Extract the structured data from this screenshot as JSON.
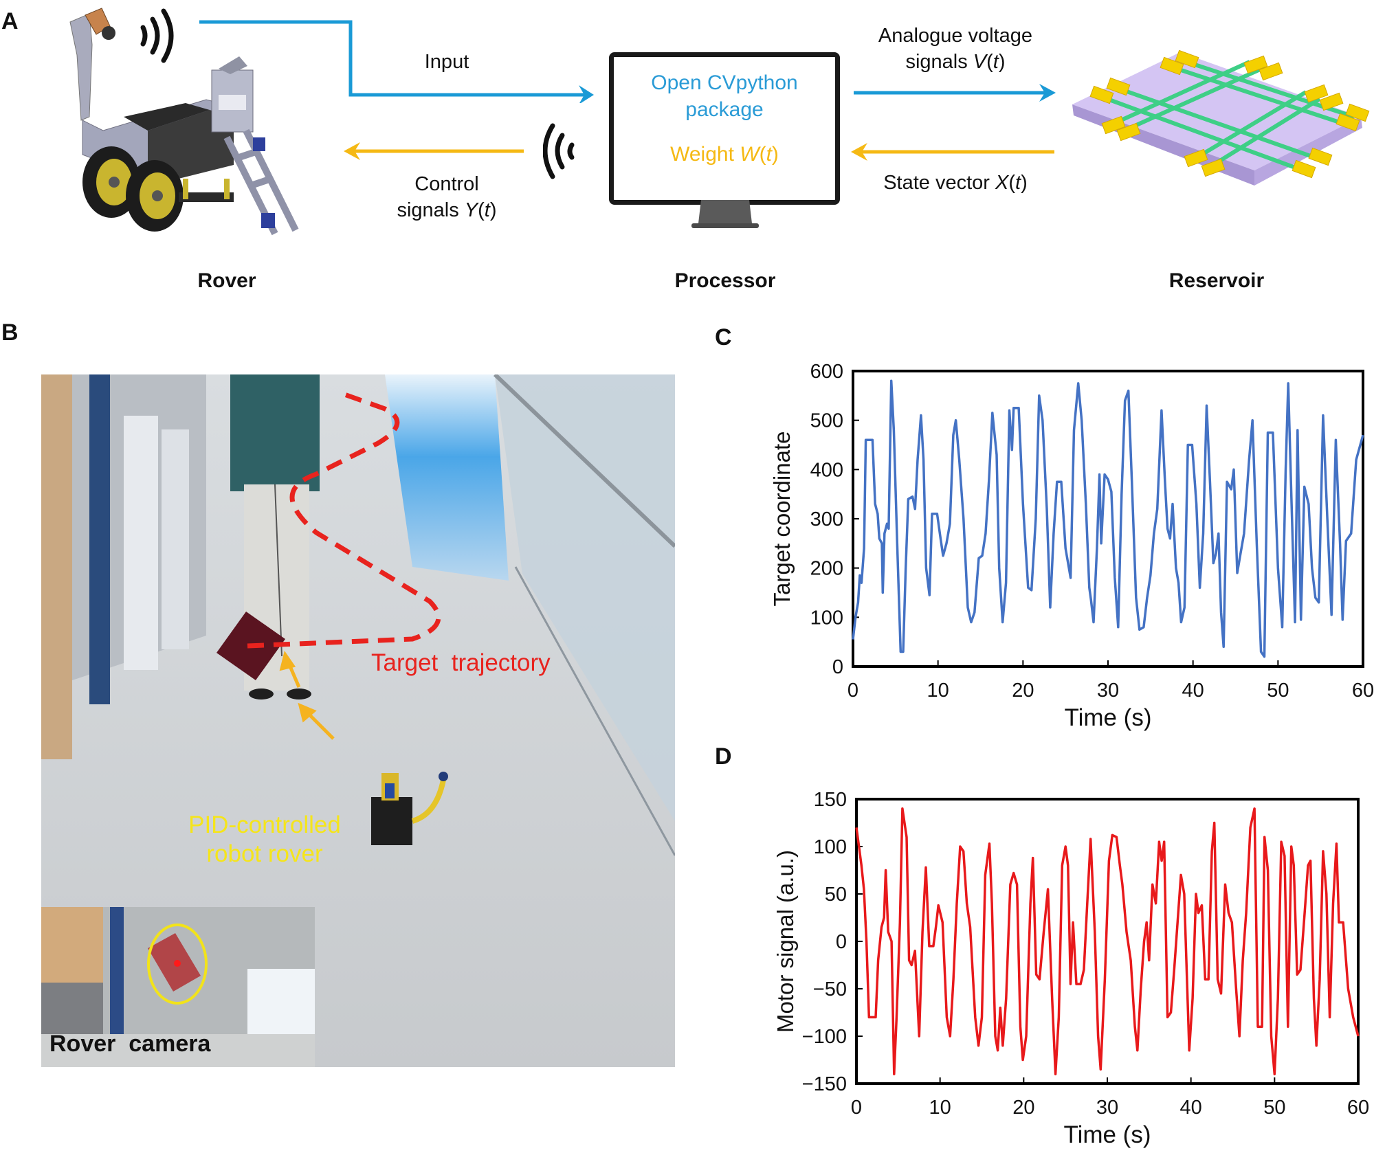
{
  "panels": {
    "a": {
      "letter": "A",
      "input_label": "Input",
      "control_label_1": "Control",
      "control_label_2": "signals ",
      "control_var": "Y",
      "control_arg": "t",
      "analogue_label_1": "Analogue voltage",
      "analogue_label_2": "signals ",
      "analogue_var": "V",
      "analogue_arg": "t",
      "state_label": "State vector ",
      "state_var": "X",
      "state_arg": "t",
      "monitor_line_1": "Open CVpython",
      "monitor_line_2": "package",
      "monitor_weight": "Weight ",
      "monitor_weight_var": "W",
      "monitor_weight_arg": "t",
      "rover_label": "Rover",
      "processor_label": "Processor",
      "reservoir_label": "Reservoir",
      "colors": {
        "forward_arrow": "#1a9ad6",
        "backward_arrow": "#f5b914",
        "substrate": "#c9b8ee",
        "electrodes": "#f4d000",
        "wires": "#3ecf86"
      }
    },
    "b": {
      "letter": "B",
      "trajectory_label": "Target  trajectory",
      "rover_label_1": "PID-controlled",
      "rover_label_2": "robot rover",
      "inset_label": "Rover  camera",
      "colors": {
        "trajectory": "#e8231e",
        "rover_text": "#f5e51a",
        "arrow": "#f5b320",
        "target": "#5a1420"
      }
    },
    "c": {
      "letter": "C"
    },
    "d": {
      "letter": "D"
    }
  },
  "chart_data": [
    {
      "id": "C",
      "type": "line",
      "title": "",
      "xlabel": "Time (s)",
      "ylabel": "Target coordinate",
      "xlim": [
        0,
        60
      ],
      "ylim": [
        0,
        600
      ],
      "xticks": [
        0,
        10,
        20,
        30,
        40,
        50,
        60
      ],
      "yticks": [
        0,
        100,
        200,
        300,
        400,
        500,
        600
      ],
      "grid": false,
      "color": "#4472c4",
      "series": [
        {
          "name": "Target coordinate",
          "x": [
            0,
            0.3,
            0.6,
            0.8,
            1.0,
            1.3,
            1.5,
            2.3,
            2.6,
            2.9,
            3.1,
            3.4,
            3.5,
            3.7,
            4.0,
            4.2,
            4.5,
            4.8,
            5.2,
            5.6,
            5.9,
            6.2,
            6.5,
            7.0,
            7.3,
            7.6,
            8.0,
            8.3,
            8.6,
            9.0,
            9.3,
            9.9,
            10.3,
            10.6,
            11.0,
            11.4,
            11.8,
            12.1,
            12.5,
            13.0,
            13.5,
            13.9,
            14.3,
            14.8,
            15.2,
            15.6,
            16.0,
            16.4,
            16.9,
            17.2,
            17.6,
            18.0,
            18.4,
            18.7,
            18.9,
            19.5,
            20.0,
            20.6,
            21.0,
            21.5,
            21.9,
            22.3,
            22.8,
            23.2,
            23.6,
            24.0,
            24.5,
            25.0,
            25.6,
            26.0,
            26.5,
            26.9,
            27.4,
            27.8,
            28.0,
            28.3,
            28.7,
            29.0,
            29.2,
            29.6,
            30.0,
            30.4,
            30.8,
            31.2,
            31.6,
            32.0,
            32.4,
            32.8,
            33.3,
            33.7,
            34.2,
            34.6,
            35.0,
            35.4,
            35.8,
            36.3,
            36.7,
            37.0,
            37.3,
            37.6,
            38.0,
            38.3,
            38.6,
            39.0,
            39.4,
            39.9,
            40.4,
            40.8,
            41.2,
            41.6,
            42.0,
            42.4,
            42.7,
            43.0,
            43.3,
            43.6,
            44.0,
            44.5,
            44.8,
            45.2,
            45.6,
            46.0,
            46.6,
            47.0,
            47.5,
            48.0,
            48.4,
            48.8,
            49.4,
            50.0,
            50.5,
            50.9,
            51.2,
            51.6,
            52.0,
            52.3,
            52.7,
            53.1,
            53.6,
            54.0,
            54.4,
            54.8,
            55.3,
            55.8,
            56.3,
            56.8,
            57.3,
            57.6,
            58.0,
            58.6,
            59.2,
            60.0
          ],
          "y": [
            55,
            100,
            130,
            185,
            170,
            240,
            460,
            460,
            330,
            310,
            260,
            250,
            150,
            270,
            290,
            280,
            580,
            480,
            250,
            30,
            30,
            200,
            340,
            345,
            320,
            420,
            510,
            420,
            200,
            145,
            310,
            310,
            260,
            225,
            250,
            290,
            470,
            500,
            420,
            300,
            120,
            90,
            110,
            220,
            225,
            270,
            380,
            515,
            430,
            200,
            90,
            170,
            520,
            440,
            525,
            525,
            330,
            160,
            155,
            300,
            550,
            500,
            320,
            120,
            270,
            375,
            375,
            240,
            180,
            480,
            575,
            500,
            330,
            160,
            135,
            90,
            240,
            390,
            250,
            390,
            380,
            355,
            180,
            80,
            350,
            540,
            560,
            380,
            140,
            75,
            80,
            140,
            185,
            270,
            320,
            520,
            375,
            280,
            260,
            330,
            200,
            170,
            90,
            120,
            450,
            450,
            330,
            160,
            270,
            530,
            375,
            210,
            230,
            270,
            110,
            40,
            375,
            360,
            400,
            190,
            230,
            270,
            420,
            500,
            250,
            30,
            20,
            475,
            475,
            200,
            80,
            400,
            575,
            330,
            90,
            480,
            95,
            365,
            330,
            200,
            140,
            130,
            510,
            300,
            105,
            460,
            250,
            95,
            255,
            270,
            420,
            470
          ]
        }
      ]
    },
    {
      "id": "D",
      "type": "line",
      "title": "",
      "xlabel": "Time (s)",
      "ylabel": "Motor signal (a.u.)",
      "xlim": [
        0,
        60
      ],
      "ylim": [
        -150,
        150
      ],
      "xticks": [
        0,
        10,
        20,
        30,
        40,
        50,
        60
      ],
      "yticks": [
        -150,
        -100,
        -50,
        0,
        50,
        100,
        150
      ],
      "grid": false,
      "color": "#e8191b",
      "series": [
        {
          "name": "Motor signal",
          "x": [
            0,
            0.3,
            0.6,
            0.9,
            1.2,
            1.5,
            2.3,
            2.6,
            3.0,
            3.3,
            3.5,
            3.8,
            4.2,
            4.5,
            4.8,
            5.2,
            5.5,
            6.0,
            6.3,
            6.6,
            7.0,
            7.5,
            7.9,
            8.3,
            8.7,
            9.2,
            9.5,
            9.8,
            10.3,
            10.8,
            11.2,
            11.6,
            12.0,
            12.4,
            12.8,
            13.2,
            13.6,
            14.2,
            14.6,
            15.0,
            15.4,
            15.9,
            16.2,
            16.6,
            16.9,
            17.2,
            17.5,
            17.9,
            18.4,
            18.8,
            19.2,
            19.6,
            19.9,
            20.3,
            20.8,
            21.1,
            21.5,
            21.9,
            22.4,
            22.9,
            23.4,
            23.8,
            24.2,
            24.6,
            25.0,
            25.3,
            25.6,
            25.9,
            26.3,
            26.8,
            27.2,
            27.6,
            28.0,
            28.5,
            28.9,
            29.2,
            29.7,
            30.2,
            30.6,
            31.1,
            31.5,
            31.8,
            32.3,
            32.8,
            33.3,
            33.6,
            34.0,
            34.4,
            34.7,
            35.0,
            35.4,
            35.8,
            36.2,
            36.5,
            36.8,
            37.2,
            37.6,
            38.0,
            38.4,
            38.8,
            39.2,
            39.8,
            40.2,
            40.6,
            40.9,
            41.3,
            41.7,
            42.1,
            42.5,
            42.8,
            43.2,
            43.6,
            44.1,
            44.5,
            44.9,
            45.4,
            45.8,
            46.2,
            46.6,
            47.1,
            47.6,
            48.0,
            48.5,
            48.8,
            49.2,
            49.6,
            50.0,
            50.4,
            50.8,
            51.2,
            51.6,
            52.0,
            52.3,
            52.7,
            53.1,
            53.6,
            54.0,
            54.3,
            54.7,
            55.0,
            55.4,
            55.8,
            56.2,
            56.6,
            57.0,
            57.4,
            57.7,
            58.2,
            58.8,
            59.4,
            60.0
          ],
          "y": [
            120,
            100,
            80,
            55,
            0,
            -80,
            -80,
            -20,
            15,
            25,
            75,
            10,
            0,
            -140,
            -80,
            20,
            140,
            110,
            -20,
            -25,
            -10,
            -100,
            10,
            78,
            -5,
            -5,
            15,
            38,
            20,
            -80,
            -100,
            -40,
            40,
            100,
            95,
            40,
            15,
            -80,
            -110,
            -80,
            70,
            103,
            40,
            -100,
            -115,
            -70,
            -110,
            -60,
            60,
            72,
            60,
            -90,
            -125,
            -100,
            40,
            88,
            -35,
            -40,
            10,
            55,
            -60,
            -140,
            -80,
            80,
            100,
            80,
            -45,
            20,
            -45,
            -45,
            -30,
            40,
            108,
            10,
            -100,
            -135,
            -40,
            85,
            112,
            110,
            80,
            60,
            10,
            -20,
            -90,
            -115,
            -50,
            0,
            20,
            -20,
            60,
            40,
            105,
            85,
            105,
            -80,
            -75,
            -30,
            20,
            70,
            50,
            -115,
            -60,
            50,
            30,
            38,
            -40,
            -40,
            95,
            125,
            -40,
            -55,
            60,
            30,
            20,
            -50,
            -100,
            -20,
            30,
            120,
            140,
            -90,
            -90,
            110,
            75,
            -100,
            -140,
            -60,
            105,
            90,
            -90,
            100,
            80,
            -35,
            -30,
            30,
            80,
            85,
            -60,
            -110,
            -40,
            95,
            50,
            -80,
            40,
            103,
            20,
            20,
            -50,
            -80,
            -100
          ]
        }
      ]
    }
  ]
}
